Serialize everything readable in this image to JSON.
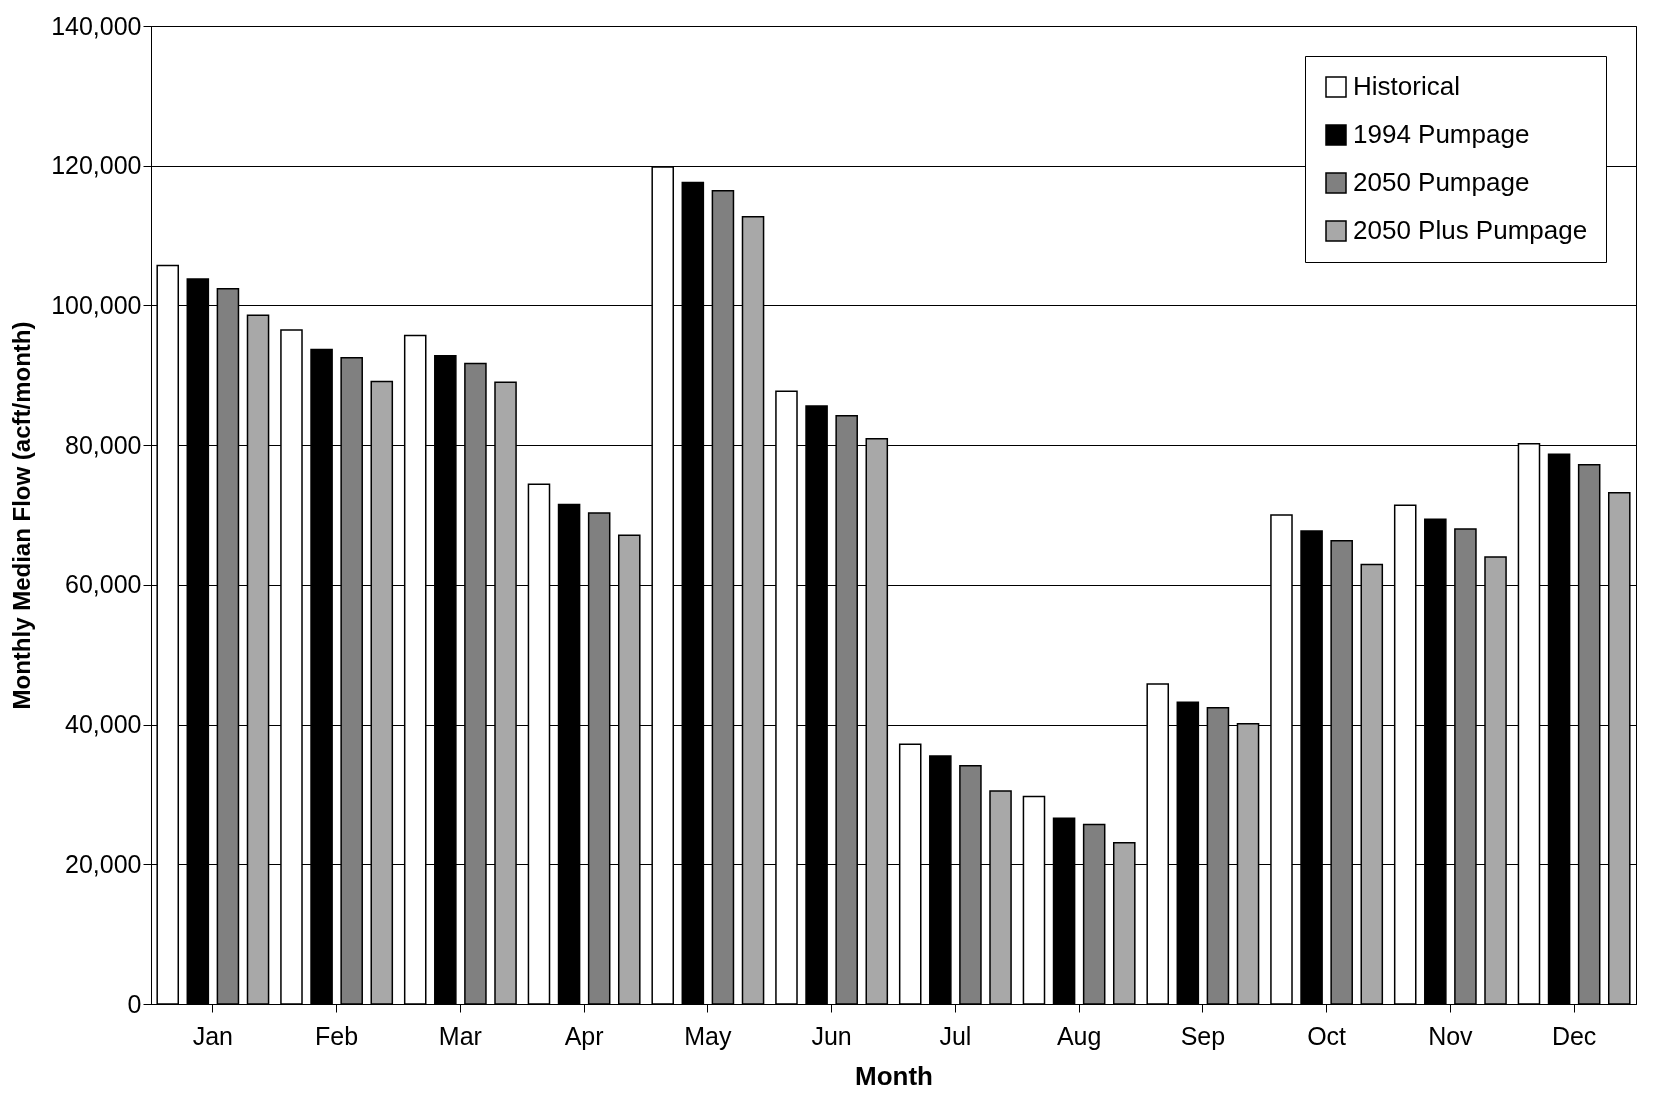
{
  "chart_data": {
    "type": "bar",
    "xlabel": "Month",
    "ylabel": "Monthly Median Flow (acft/month)",
    "categories": [
      "Jan",
      "Feb",
      "Mar",
      "Apr",
      "May",
      "Jun",
      "Jul",
      "Aug",
      "Sep",
      "Oct",
      "Nov",
      "Dec"
    ],
    "series": [
      {
        "name": "Historical",
        "color": "#ffffff",
        "values": [
          105700,
          96500,
          95700,
          74400,
          119800,
          87700,
          37200,
          29700,
          45800,
          70000,
          71400,
          80200
        ]
      },
      {
        "name": "1994 Pumpage",
        "color": "#000000",
        "values": [
          103800,
          93700,
          92800,
          71500,
          117600,
          85600,
          35500,
          26600,
          43200,
          67700,
          69400,
          78700
        ]
      },
      {
        "name": "2050 Pumpage",
        "color": "#808080",
        "values": [
          102400,
          92500,
          91700,
          70300,
          116400,
          84200,
          34100,
          25700,
          42400,
          66300,
          68000,
          77200
        ]
      },
      {
        "name": "2050 Plus Pumpage",
        "color": "#a8a8a8",
        "values": [
          98600,
          89100,
          89000,
          67100,
          112700,
          80900,
          30500,
          23100,
          40100,
          62900,
          64000,
          73200
        ]
      }
    ],
    "ylim": [
      0,
      140000
    ],
    "yticks": [
      0,
      {
        "value": 20000,
        "label": "20,000"
      },
      {
        "value": 40000,
        "label": "40,000"
      },
      {
        "value": 60000,
        "label": "60,000"
      },
      {
        "value": 80000,
        "label": "80,000"
      },
      {
        "value": 100000,
        "label": "100,000"
      },
      {
        "value": 120000,
        "label": "120,000"
      },
      {
        "value": 140000,
        "label": "140,000"
      }
    ],
    "grid": "y",
    "legend": "top right"
  }
}
